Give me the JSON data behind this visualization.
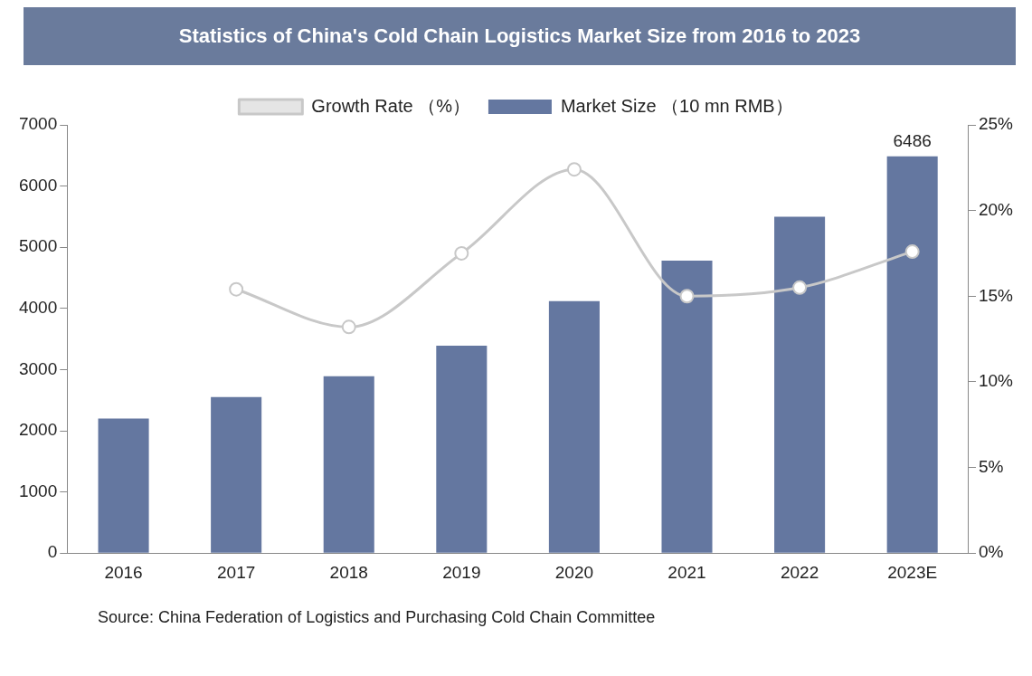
{
  "chart_data": {
    "type": "bar",
    "title": "Statistics of China's Cold Chain Logistics Market Size from 2016 to 2023",
    "categories": [
      "2016",
      "2017",
      "2018",
      "2019",
      "2020",
      "2021",
      "2022",
      "2023E"
    ],
    "series": [
      {
        "name": "Market Size （10 mn RMB）",
        "color": "#6477a0",
        "values": [
          2200,
          2550,
          2890,
          3390,
          4120,
          4780,
          5500,
          6486
        ],
        "value_labels": [
          null,
          null,
          null,
          null,
          null,
          null,
          null,
          "6486"
        ]
      },
      {
        "name": "Growth Rate （%）",
        "type": "line",
        "axis": "y2",
        "color": "#c8c8c8",
        "marker": "circle",
        "values": [
          null,
          15.4,
          13.2,
          17.5,
          22.4,
          15.0,
          15.5,
          17.6
        ]
      }
    ],
    "ylim": [
      0,
      7000
    ],
    "yticks": [
      0,
      1000,
      2000,
      3000,
      4000,
      5000,
      6000,
      7000
    ],
    "y2lim": [
      0,
      25
    ],
    "y2ticks": [
      {
        "value": 0,
        "label": "0%"
      },
      {
        "value": 5,
        "label": "5%"
      },
      {
        "value": 10,
        "label": "10%"
      },
      {
        "value": 15,
        "label": "15%"
      },
      {
        "value": 20,
        "label": "20%"
      },
      {
        "value": 25,
        "label": "25%"
      }
    ],
    "grid": false,
    "legend": "top",
    "annotations": [
      "Source: China Federation of Logistics and Purchasing Cold Chain Committee"
    ]
  }
}
